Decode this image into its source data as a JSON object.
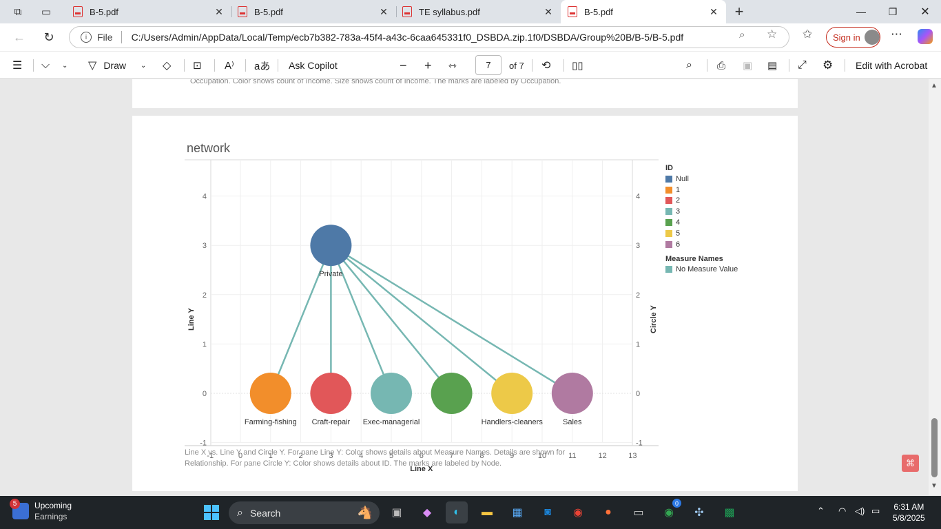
{
  "browser": {
    "tabs": [
      {
        "title": "B-5.pdf",
        "active": false
      },
      {
        "title": "B-5.pdf",
        "active": false
      },
      {
        "title": "TE syllabus.pdf",
        "active": false
      },
      {
        "title": "B-5.pdf",
        "active": true
      }
    ],
    "address": {
      "scheme_label": "File",
      "url": "C:/Users/Admin/AppData/Local/Temp/ecb7b382-783a-45f4-a43c-6caa645331f0_DSBDA.zip.1f0/DSBDA/Group%20B/B-5/B-5.pdf"
    },
    "sign_in_label": "Sign in"
  },
  "pdf_toolbar": {
    "draw_label": "Draw",
    "ask_copilot_label": "Ask Copilot",
    "page_current": "7",
    "page_total_label": "of 7",
    "edit_label": "Edit with Acrobat"
  },
  "document": {
    "prev_caption": "Occupation.  Color shows count of Income.  Size shows count of Income.  The marks are labeled by Occupation.",
    "chart_title": "network",
    "chart_caption_1": "Line X vs. Line Y and Circle Y.  For pane Line Y:  Color shows details about Measure Names.  Details are shown for",
    "chart_caption_2": "Relationship.  For pane Circle Y:  Color shows details about ID.  The marks are labeled by Node."
  },
  "chart_data": {
    "type": "scatter",
    "title": "network",
    "xlabel": "Line X",
    "ylabel": "Line Y",
    "y2label": "Circle Y",
    "xlim": [
      -1,
      13
    ],
    "ylim": [
      -1,
      4
    ],
    "x_ticks": [
      "-1",
      "0",
      "1",
      "2",
      "3",
      "4",
      "5",
      "6",
      "7",
      "8",
      "9",
      "10",
      "11",
      "12",
      "13"
    ],
    "y_ticks": [
      "-1",
      "0",
      "1",
      "2",
      "3",
      "4"
    ],
    "nodes": [
      {
        "label": "Private",
        "x": 3,
        "y": 3,
        "id": "Null",
        "color": "#4e79a7"
      },
      {
        "label": "Farming-fishing",
        "x": 1,
        "y": 0,
        "id": "1",
        "color": "#f28e2b"
      },
      {
        "label": "Craft-repair",
        "x": 3,
        "y": 0,
        "id": "2",
        "color": "#e15759"
      },
      {
        "label": "Exec-managerial",
        "x": 5,
        "y": 0,
        "id": "3",
        "color": "#76b7b2"
      },
      {
        "label": "",
        "x": 7,
        "y": 0,
        "id": "4",
        "color": "#59a14f"
      },
      {
        "label": "Handlers-cleaners",
        "x": 9,
        "y": 0,
        "id": "5",
        "color": "#edc948"
      },
      {
        "label": "Sales",
        "x": 11,
        "y": 0,
        "id": "6",
        "color": "#b07aa1"
      }
    ],
    "edges": [
      {
        "from": [
          3,
          3
        ],
        "to": [
          1,
          0
        ]
      },
      {
        "from": [
          3,
          3
        ],
        "to": [
          3,
          0
        ]
      },
      {
        "from": [
          3,
          3
        ],
        "to": [
          5,
          0
        ]
      },
      {
        "from": [
          3,
          3
        ],
        "to": [
          7,
          0
        ]
      },
      {
        "from": [
          3,
          3
        ],
        "to": [
          9,
          0
        ]
      },
      {
        "from": [
          3,
          3
        ],
        "to": [
          11,
          0
        ]
      }
    ],
    "edge_color": "#76b7b2",
    "legend": {
      "id_title": "ID",
      "id_items": [
        {
          "label": "Null",
          "color": "#4e79a7"
        },
        {
          "label": "1",
          "color": "#f28e2b"
        },
        {
          "label": "2",
          "color": "#e15759"
        },
        {
          "label": "3",
          "color": "#76b7b2"
        },
        {
          "label": "4",
          "color": "#59a14f"
        },
        {
          "label": "5",
          "color": "#edc948"
        },
        {
          "label": "6",
          "color": "#b07aa1"
        }
      ],
      "measure_title": "Measure Names",
      "measure_items": [
        {
          "label": "No Measure Value",
          "color": "#76b7b2"
        }
      ]
    }
  },
  "taskbar": {
    "weather_badge": "5",
    "weather_line1": "Upcoming",
    "weather_line2": "Earnings",
    "search_label": "Search",
    "chrome_badge": "0",
    "time": "6:31 AM",
    "date": "5/8/2025"
  }
}
